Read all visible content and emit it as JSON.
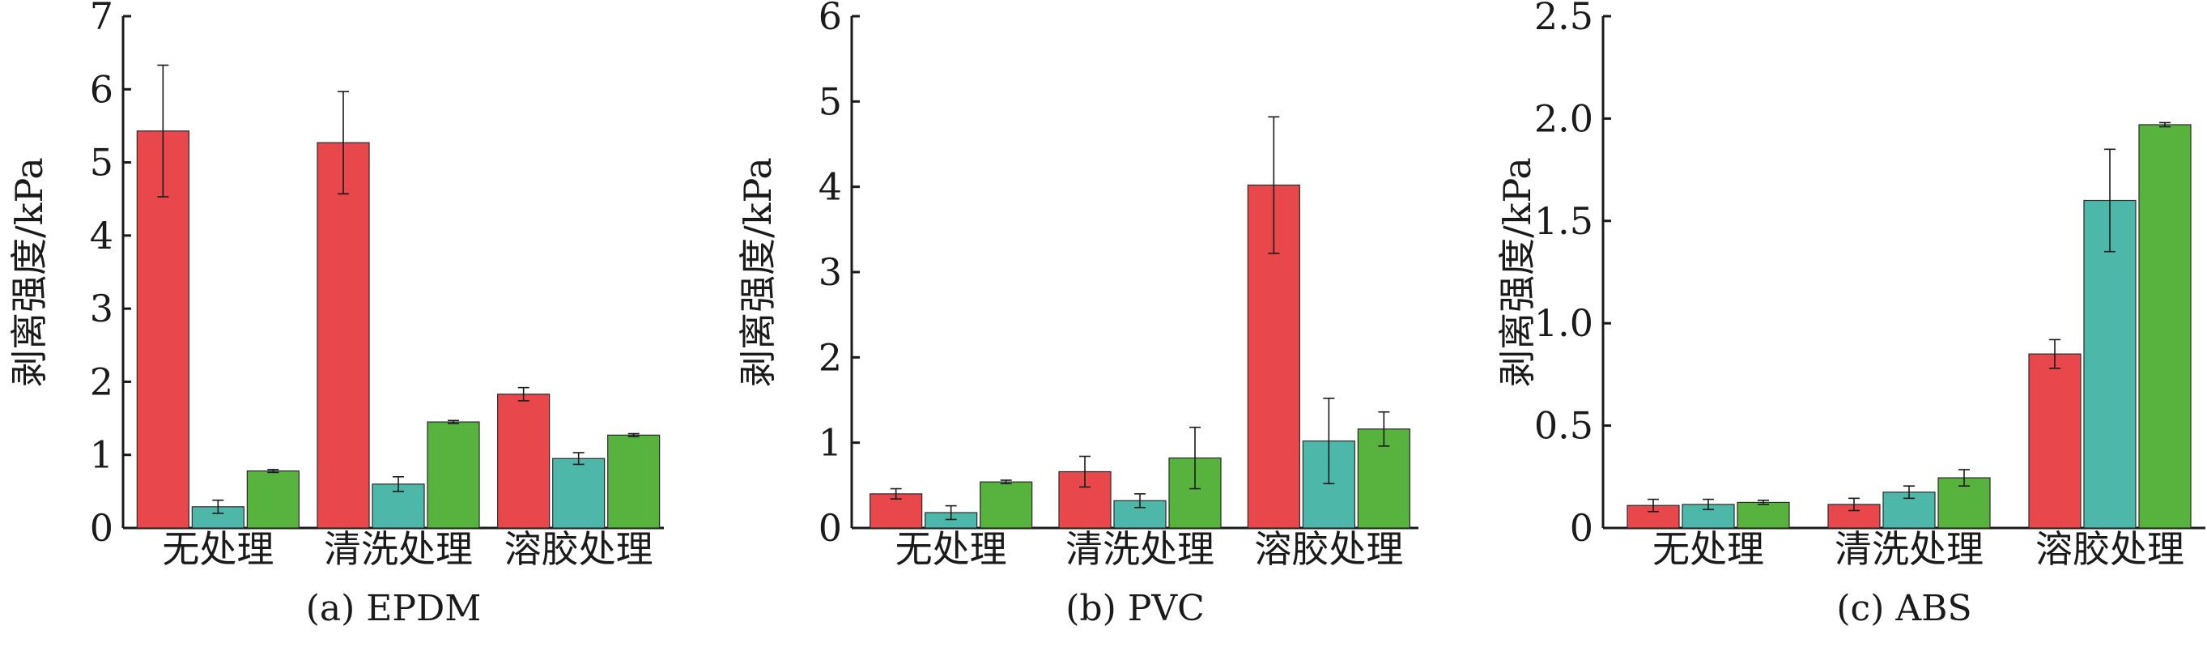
{
  "chart_data": [
    {
      "type": "bar",
      "title": "(a) EPDM",
      "ylabel": "剥离强度/kPa",
      "categories": [
        "无处理",
        "清洗处理",
        "溶胶处理"
      ],
      "ylim": [
        0,
        7
      ],
      "yticks": [
        "0",
        "1",
        "2",
        "3",
        "4",
        "5",
        "6",
        "7"
      ],
      "series": [
        {
          "color": "#e8474c",
          "values": [
            5.43,
            5.27,
            1.83
          ],
          "errors": [
            0.9,
            0.7,
            0.09
          ]
        },
        {
          "color": "#4db8aa",
          "values": [
            0.29,
            0.6,
            0.95
          ],
          "errors": [
            0.09,
            0.1,
            0.08
          ]
        },
        {
          "color": "#58b33e",
          "values": [
            0.78,
            1.45,
            1.27
          ],
          "errors": [
            0.02,
            0.02,
            0.02
          ]
        }
      ]
    },
    {
      "type": "bar",
      "title": "(b) PVC",
      "ylabel": "剥离强度/kPa",
      "categories": [
        "无处理",
        "清洗处理",
        "溶胶处理"
      ],
      "ylim": [
        0,
        6
      ],
      "yticks": [
        "0",
        "1",
        "2",
        "3",
        "4",
        "5",
        "6"
      ],
      "series": [
        {
          "color": "#e8474c",
          "values": [
            0.4,
            0.66,
            4.02
          ],
          "errors": [
            0.06,
            0.18,
            0.8
          ]
        },
        {
          "color": "#4db8aa",
          "values": [
            0.18,
            0.32,
            1.02
          ],
          "errors": [
            0.08,
            0.08,
            0.5
          ]
        },
        {
          "color": "#58b33e",
          "values": [
            0.54,
            0.82,
            1.16
          ],
          "errors": [
            0.02,
            0.36,
            0.2
          ]
        }
      ]
    },
    {
      "type": "bar",
      "title": "(c) ABS",
      "ylabel": "剥离强度/kPa",
      "categories": [
        "无处理",
        "清洗处理",
        "溶胶处理"
      ],
      "ylim": [
        0,
        2.5
      ],
      "yticks": [
        "0",
        "0.5",
        "1.0",
        "1.5",
        "2.0",
        "2.5"
      ],
      "series": [
        {
          "color": "#e8474c",
          "values": [
            0.11,
            0.115,
            0.85
          ],
          "errors": [
            0.03,
            0.03,
            0.07
          ]
        },
        {
          "color": "#4db8aa",
          "values": [
            0.115,
            0.175,
            1.6
          ],
          "errors": [
            0.025,
            0.03,
            0.25
          ]
        },
        {
          "color": "#58b33e",
          "values": [
            0.125,
            0.245,
            1.97
          ],
          "errors": [
            0.01,
            0.04,
            0.01
          ]
        }
      ]
    }
  ]
}
